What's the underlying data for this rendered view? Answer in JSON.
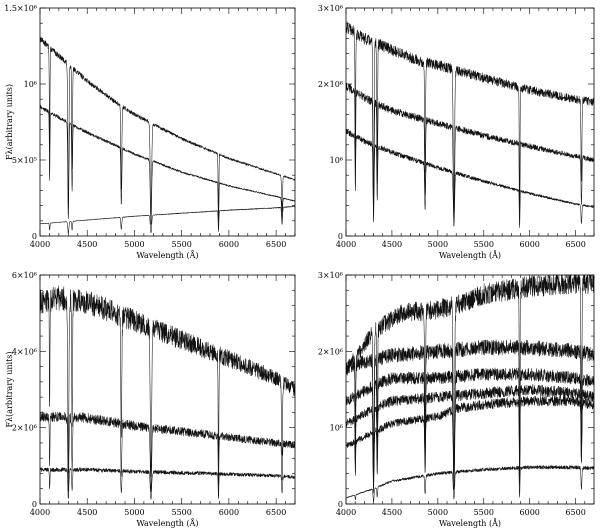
{
  "chart_data": [
    {
      "type": "line",
      "panel": "top-left",
      "xlabel": "Wavelength (Å)",
      "ylabel": "Fλ(arbitrary units)",
      "xlim": [
        4000,
        6700
      ],
      "ylim": [
        0,
        1500000
      ],
      "xticks": [
        4000,
        4500,
        5000,
        5500,
        6000,
        6500
      ],
      "xtick_labels": [
        "4000",
        "4500",
        "5000",
        "5500",
        "6000",
        "6500"
      ],
      "yticks": [
        0,
        500000,
        1000000,
        1500000
      ],
      "ytick_labels": [
        "0",
        "5×10⁵",
        "10⁶",
        "1.5×10⁶"
      ],
      "noise": 0.015,
      "series": [
        {
          "x": [
            4000,
            4100,
            4300,
            4500,
            4800,
            5000,
            5500,
            6000,
            6500,
            6700
          ],
          "values": [
            1300000,
            1240000,
            1130000,
            1020000,
            880000,
            800000,
            640000,
            510000,
            410000,
            370000
          ]
        },
        {
          "x": [
            4000,
            4200,
            4500,
            5000,
            5500,
            6000,
            6500,
            6700
          ],
          "values": [
            850000,
            780000,
            680000,
            540000,
            420000,
            330000,
            260000,
            230000
          ]
        },
        {
          "x": [
            4000,
            4500,
            5000,
            5500,
            6000,
            6500,
            6700
          ],
          "values": [
            80000,
            105000,
            130000,
            150000,
            170000,
            185000,
            195000
          ]
        }
      ]
    },
    {
      "type": "line",
      "panel": "top-right",
      "xlabel": "Wavelength (Å)",
      "ylabel": "",
      "xlim": [
        4000,
        6700
      ],
      "ylim": [
        0,
        3000000
      ],
      "xticks": [
        4000,
        4500,
        5000,
        5500,
        6000,
        6500
      ],
      "xtick_labels": [
        "4000",
        "4500",
        "5000",
        "5500",
        "6000",
        "6500"
      ],
      "yticks": [
        0,
        1000000,
        2000000,
        3000000
      ],
      "ytick_labels": [
        "0",
        "10⁶",
        "2×10⁶",
        "3×10⁶"
      ],
      "noise": 0.03,
      "series": [
        {
          "x": [
            4000,
            4200,
            4500,
            4800,
            5000,
            5500,
            6000,
            6500,
            6700
          ],
          "values": [
            2750000,
            2600000,
            2450000,
            2300000,
            2250000,
            2080000,
            1920000,
            1800000,
            1760000
          ]
        },
        {
          "x": [
            4000,
            4200,
            4500,
            5000,
            5500,
            6000,
            6500,
            6700
          ],
          "values": [
            1980000,
            1820000,
            1650000,
            1480000,
            1320000,
            1180000,
            1050000,
            1000000
          ]
        },
        {
          "x": [
            4000,
            4200,
            4500,
            5000,
            5500,
            6000,
            6500,
            6700
          ],
          "values": [
            1380000,
            1250000,
            1100000,
            900000,
            720000,
            560000,
            420000,
            380000
          ]
        }
      ]
    },
    {
      "type": "line",
      "panel": "bottom-left",
      "xlabel": "Wavelength (Å)",
      "ylabel": "Fλ(arbitrary units)",
      "xlim": [
        4000,
        6700
      ],
      "ylim": [
        0,
        6000000
      ],
      "xticks": [
        4000,
        4500,
        5000,
        5500,
        6000,
        6500
      ],
      "xtick_labels": [
        "4000",
        "4500",
        "5000",
        "5500",
        "6000",
        "6500"
      ],
      "yticks": [
        0,
        2000000,
        4000000,
        6000000
      ],
      "ytick_labels": [
        "0",
        "2×10⁶",
        "4×10⁶",
        "6×10⁶"
      ],
      "noise": 0.06,
      "series": [
        {
          "x": [
            4000,
            4200,
            4500,
            5000,
            5500,
            6000,
            6500,
            6700
          ],
          "values": [
            5300000,
            5400000,
            5300000,
            4800000,
            4300000,
            3800000,
            3300000,
            3000000
          ]
        },
        {
          "x": [
            4000,
            4500,
            5000,
            5500,
            6000,
            6500,
            6700
          ],
          "values": [
            2300000,
            2250000,
            2050000,
            1900000,
            1750000,
            1600000,
            1550000
          ]
        },
        {
          "x": [
            4000,
            4500,
            5000,
            5500,
            6000,
            6500,
            6700
          ],
          "values": [
            900000,
            900000,
            850000,
            820000,
            780000,
            740000,
            700000
          ]
        }
      ]
    },
    {
      "type": "line",
      "panel": "bottom-right",
      "xlabel": "Wavelength (Å)",
      "ylabel": "",
      "xlim": [
        4000,
        6700
      ],
      "ylim": [
        0,
        3000000
      ],
      "xticks": [
        4000,
        4500,
        5000,
        5500,
        6000,
        6500
      ],
      "xtick_labels": [
        "4000",
        "4500",
        "5000",
        "5500",
        "6000",
        "6500"
      ],
      "yticks": [
        0,
        1000000,
        2000000,
        3000000
      ],
      "ytick_labels": [
        "0",
        "10⁶",
        "2×10⁶",
        "3×10⁶"
      ],
      "noise": 0.05,
      "series": [
        {
          "x": [
            4000,
            4300,
            4600,
            5000,
            5200,
            5500,
            6000,
            6500,
            6700
          ],
          "values": [
            1750000,
            2250000,
            2500000,
            2550000,
            2600000,
            2750000,
            2850000,
            2900000,
            2900000
          ]
        },
        {
          "x": [
            4000,
            4500,
            5000,
            5500,
            6000,
            6500,
            6700
          ],
          "values": [
            1800000,
            1950000,
            2000000,
            2050000,
            2050000,
            2000000,
            1950000
          ]
        },
        {
          "x": [
            4000,
            4300,
            4500,
            5000,
            5500,
            6000,
            6500,
            6700
          ],
          "values": [
            1350000,
            1550000,
            1650000,
            1650000,
            1700000,
            1700000,
            1650000,
            1600000
          ]
        },
        {
          "x": [
            4000,
            4300,
            4500,
            5000,
            5500,
            6000,
            6500,
            6700
          ],
          "values": [
            1050000,
            1250000,
            1350000,
            1400000,
            1450000,
            1500000,
            1450000,
            1400000
          ]
        },
        {
          "x": [
            4000,
            4300,
            4500,
            5000,
            5200,
            5500,
            6000,
            6500,
            6700
          ],
          "values": [
            750000,
            950000,
            1050000,
            1150000,
            1250000,
            1300000,
            1350000,
            1350000,
            1300000
          ]
        },
        {
          "x": [
            4000,
            4300,
            4500,
            5000,
            5500,
            6000,
            6500,
            6700
          ],
          "values": [
            80000,
            200000,
            300000,
            400000,
            450000,
            480000,
            480000,
            470000
          ]
        }
      ]
    }
  ]
}
